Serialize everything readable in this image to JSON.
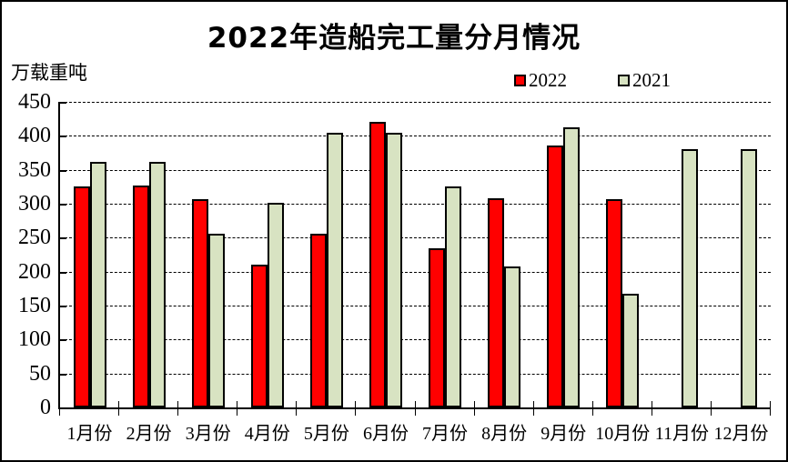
{
  "chart_data": {
    "type": "bar",
    "title": "2022年造船完工量分月情况",
    "unit_label": "万载重吨",
    "categories": [
      "1月份",
      "2月份",
      "3月份",
      "4月份",
      "5月份",
      "6月份",
      "7月份",
      "8月份",
      "9月份",
      "10月份",
      "11月份",
      "12月份"
    ],
    "series": [
      {
        "name": "2022",
        "color": "#ff0000",
        "values": [
          326,
          327,
          307,
          210,
          256,
          421,
          235,
          308,
          386,
          307,
          null,
          null
        ]
      },
      {
        "name": "2021",
        "color": "#d8e3c2",
        "values": [
          361,
          361,
          256,
          302,
          404,
          405,
          326,
          207,
          413,
          167,
          380,
          381
        ]
      }
    ],
    "ylim": [
      0,
      450
    ],
    "y_ticks": [
      450,
      400,
      350,
      300,
      250,
      200,
      150,
      100,
      50,
      0
    ],
    "grid": "horizontal-dashed",
    "legend_position": "top-right",
    "axis_color": "#000000",
    "background_color": "#ffffff"
  }
}
